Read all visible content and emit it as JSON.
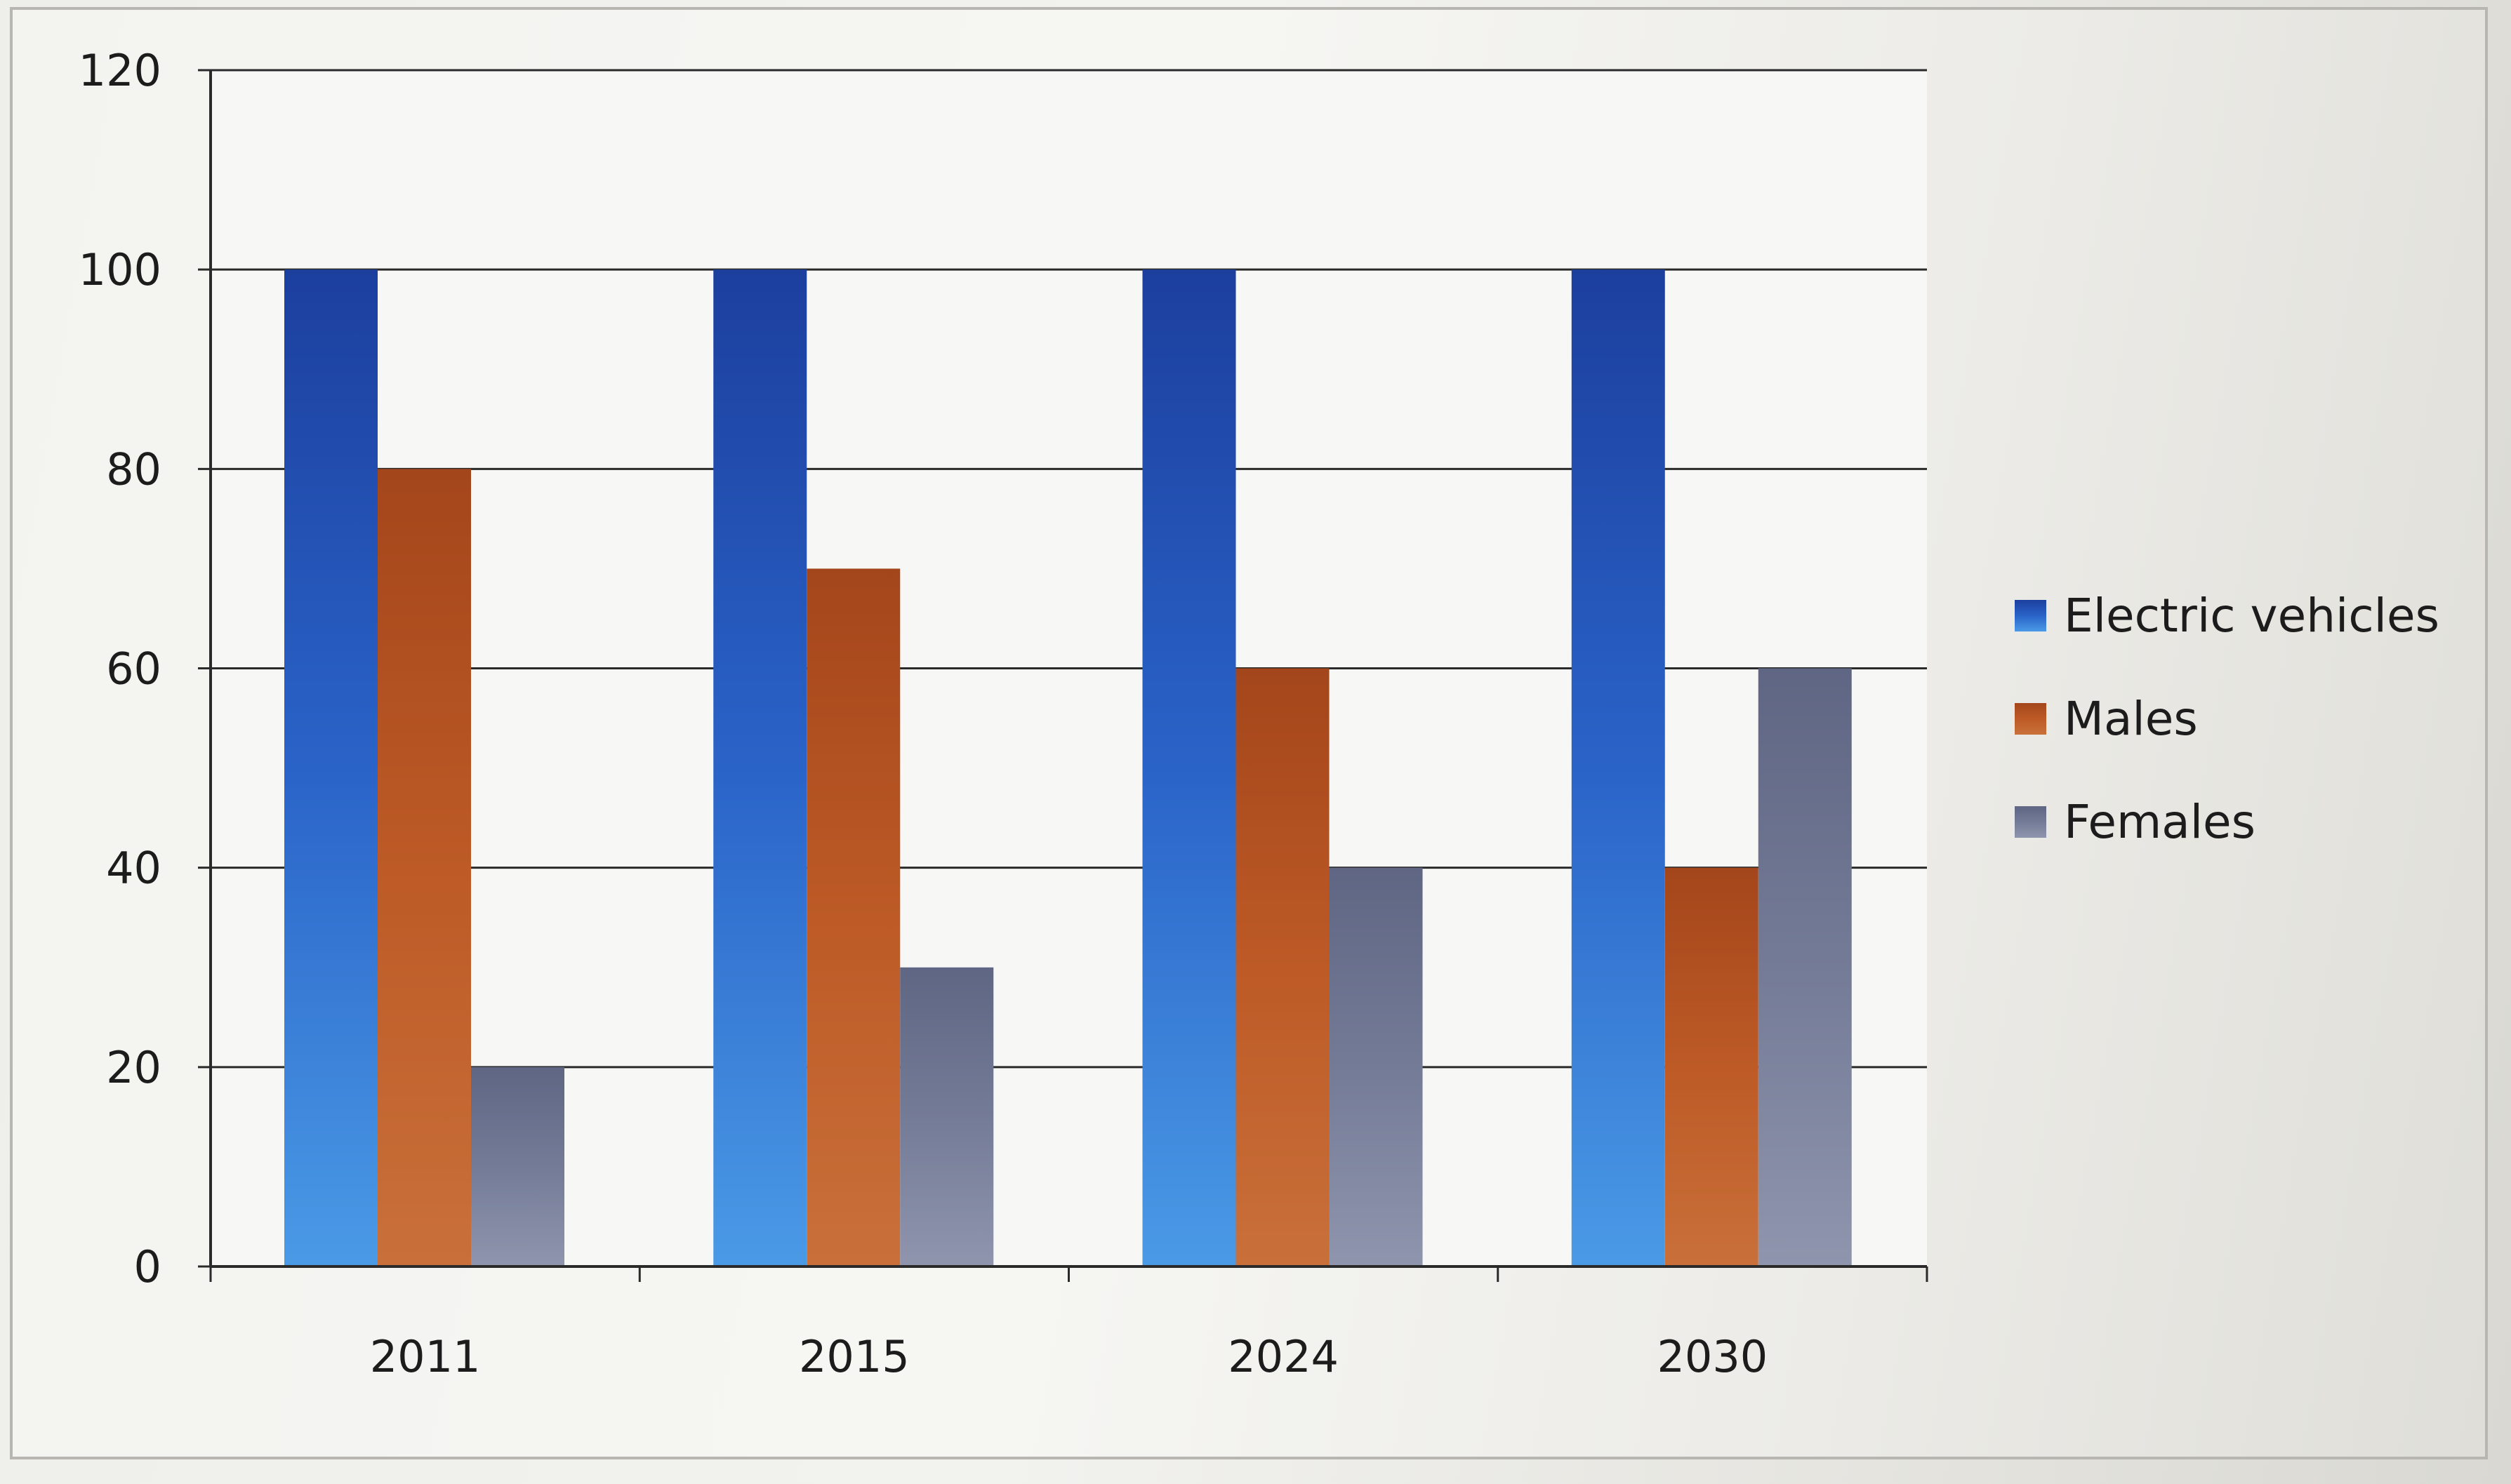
{
  "chart_data": {
    "type": "bar",
    "title": "",
    "xlabel": "",
    "ylabel": "",
    "categories": [
      "2011",
      "2015",
      "2024",
      "2030"
    ],
    "series": [
      {
        "name": "Electric vehicles",
        "values": [
          100,
          100,
          100,
          100
        ],
        "color": "#1f4fb0"
      },
      {
        "name": "Males",
        "values": [
          80,
          70,
          60,
          40
        ],
        "color": "#b24e1e"
      },
      {
        "name": "Females",
        "values": [
          20,
          30,
          40,
          60
        ],
        "color": "#6f7590"
      }
    ],
    "ylim": [
      0,
      120
    ],
    "yticks": [
      "0",
      "20",
      "40",
      "60",
      "80",
      "100",
      "120"
    ],
    "grid": true,
    "legend": "right"
  }
}
